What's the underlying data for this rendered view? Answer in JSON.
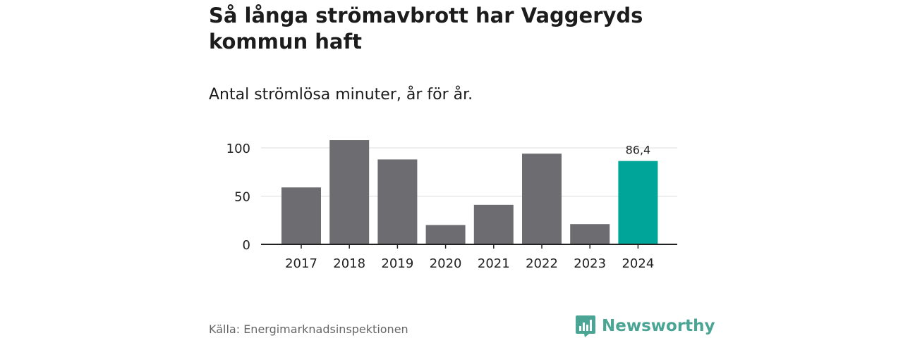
{
  "title": "Så långa strömavbrott har Vaggeryds kommun haft",
  "subtitle": "Antal strömlösa minuter, år för år.",
  "source": "Källa: Energimarknadsinspektionen",
  "brand": {
    "name": "Newsworthy",
    "color": "#4aa595"
  },
  "colors": {
    "bar": "#6d6c70",
    "highlight": "#00a599",
    "grid": "#dddddd",
    "axis": "#222222"
  },
  "chart_data": {
    "type": "bar",
    "categories": [
      "2017",
      "2018",
      "2019",
      "2020",
      "2021",
      "2022",
      "2023",
      "2024"
    ],
    "values": [
      59,
      108,
      88,
      20,
      41,
      94,
      21,
      86.4
    ],
    "highlight_index": 7,
    "value_labels": [
      {
        "index": 7,
        "text": "86,4"
      }
    ],
    "y_ticks": [
      "0",
      "50",
      "100"
    ],
    "y_tick_values": [
      0,
      50,
      100
    ],
    "ylim": [
      0,
      110
    ],
    "xlabel": "",
    "ylabel": "",
    "grid": true,
    "legend": "none"
  }
}
